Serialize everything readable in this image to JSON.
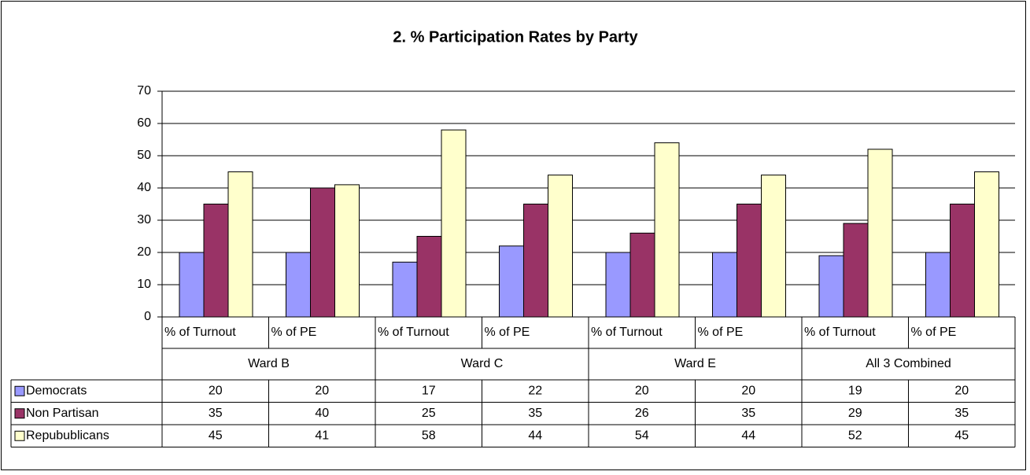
{
  "chart_data": {
    "type": "bar",
    "title": "2. % Participation Rates by Party",
    "categories": [
      "% of Turnout",
      "% of PE",
      "% of Turnout",
      "% of PE",
      "% of Turnout",
      "% of PE",
      "% of Turnout",
      "% of PE"
    ],
    "groups": [
      "Ward B",
      "Ward C",
      "Ward E",
      "All 3 Combined"
    ],
    "series": [
      {
        "name": "Democrats",
        "color": "#9999ff",
        "values": [
          20,
          20,
          17,
          22,
          20,
          20,
          19,
          20
        ]
      },
      {
        "name": "Non Partisan",
        "color": "#993366",
        "values": [
          35,
          40,
          25,
          35,
          26,
          35,
          29,
          35
        ]
      },
      {
        "name": "Repubublicans",
        "color": "#ffffcc",
        "values": [
          45,
          41,
          58,
          44,
          54,
          44,
          52,
          45
        ]
      }
    ],
    "ylim": [
      0,
      70
    ],
    "yticks": [
      0,
      10,
      20,
      30,
      40,
      50,
      60,
      70
    ],
    "grid": true,
    "data_table": true
  }
}
